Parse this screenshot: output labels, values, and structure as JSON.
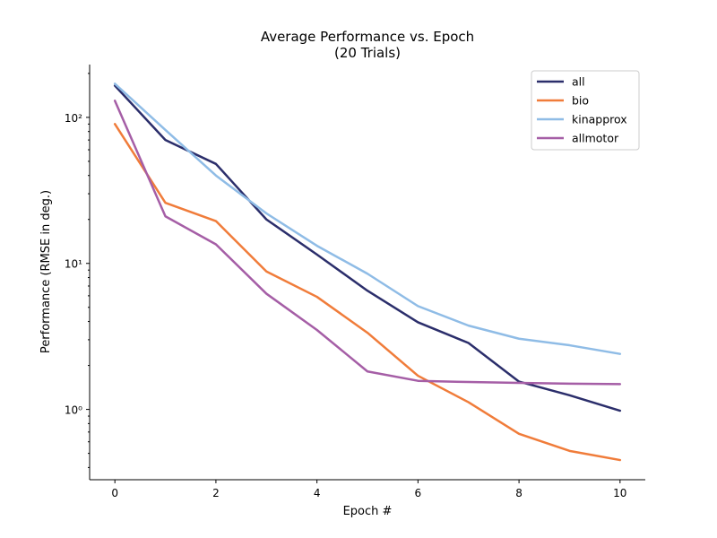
{
  "chart_data": {
    "type": "line",
    "title": "Average Performance vs. Epoch",
    "subtitle": "(20 Trials)",
    "xlabel": "Epoch #",
    "ylabel": "Performance (RMSE in deg.)",
    "y_scale": "log",
    "xlim": [
      -0.5,
      10.5
    ],
    "ylim": [
      0.33,
      230
    ],
    "x_ticks": [
      0,
      2,
      4,
      6,
      8,
      10
    ],
    "x_tick_labels": [
      "0",
      "2",
      "4",
      "6",
      "8",
      "10"
    ],
    "y_ticks": [
      1,
      10,
      100
    ],
    "y_tick_labels": [
      "10⁰",
      "10¹",
      "10²"
    ],
    "grid": false,
    "legend_position": "top-right",
    "x": [
      0,
      1,
      2,
      3,
      4,
      5,
      6,
      7,
      8,
      9,
      10
    ],
    "series": [
      {
        "name": "all",
        "color": "#2b2e6b",
        "values": [
          165,
          70,
          48,
          20,
          11.5,
          6.5,
          3.95,
          2.85,
          1.55,
          1.25,
          0.98
        ]
      },
      {
        "name": "bio",
        "color": "#f07c3a",
        "values": [
          90,
          26,
          19.5,
          8.8,
          5.9,
          3.35,
          1.7,
          1.12,
          0.68,
          0.52,
          0.45
        ]
      },
      {
        "name": "kinapprox",
        "color": "#8fbce6",
        "values": [
          170,
          82,
          40,
          22,
          13.2,
          8.5,
          5.1,
          3.75,
          3.05,
          2.75,
          2.4
        ]
      },
      {
        "name": "allmotor",
        "color": "#a55ea6",
        "values": [
          130,
          21,
          13.5,
          6.2,
          3.5,
          1.82,
          1.57,
          1.54,
          1.52,
          1.5,
          1.49
        ]
      }
    ]
  }
}
